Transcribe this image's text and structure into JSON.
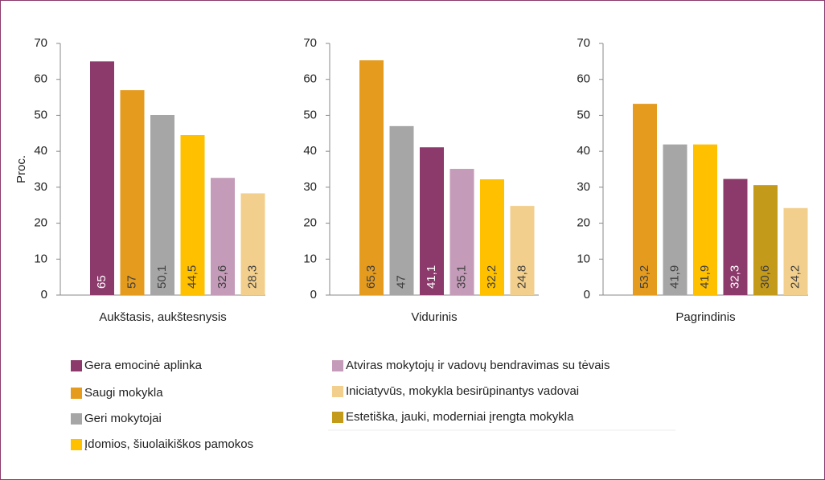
{
  "chart_data": [
    {
      "type": "bar",
      "xlabel": "Aukštasis, aukštesnysis",
      "ylabel": "Proc.",
      "values": [
        65,
        57,
        50.1,
        44.5,
        32.6,
        28.3
      ],
      "value_labels": [
        "65",
        "57",
        "50,1",
        "44,5",
        "32,6",
        "28,3"
      ],
      "colors": [
        "#8b3a6b",
        "#e49b1e",
        "#a6a6a6",
        "#ffc000",
        "#c49bb8",
        "#f2cf8c"
      ],
      "ylim": [
        0,
        70
      ],
      "yticks": [
        0,
        10,
        20,
        30,
        40,
        50,
        60,
        70
      ]
    },
    {
      "type": "bar",
      "xlabel": "Vidurinis",
      "values": [
        65.3,
        47,
        41.1,
        35.1,
        32.2,
        24.8
      ],
      "value_labels": [
        "65,3",
        "47",
        "41,1",
        "35,1",
        "32,2",
        "24,8"
      ],
      "colors": [
        "#e49b1e",
        "#a6a6a6",
        "#8b3a6b",
        "#c49bb8",
        "#ffc000",
        "#f2cf8c"
      ],
      "ylim": [
        0,
        70
      ],
      "yticks": [
        0,
        10,
        20,
        30,
        40,
        50,
        60,
        70
      ]
    },
    {
      "type": "bar",
      "xlabel": "Pagrindinis",
      "values": [
        53.2,
        41.9,
        41.9,
        32.3,
        30.6,
        24.2
      ],
      "value_labels": [
        "53,2",
        "41,9",
        "41,9",
        "32,3",
        "30,6",
        "24,2"
      ],
      "colors": [
        "#e49b1e",
        "#a6a6a6",
        "#ffc000",
        "#8b3a6b",
        "#c49a1a",
        "#f2cf8c"
      ],
      "ylim": [
        0,
        70
      ],
      "yticks": [
        0,
        10,
        20,
        30,
        40,
        50,
        60,
        70
      ]
    }
  ],
  "legend": [
    {
      "name": "Gera emocinė aplinka",
      "color": "#8b3a6b"
    },
    {
      "name": "Saugi mokykla",
      "color": "#e49b1e"
    },
    {
      "name": "Geri mokytojai",
      "color": "#a6a6a6"
    },
    {
      "name": "Įdomios, šiuolaikiškos pamokos",
      "color": "#ffc000"
    },
    {
      "name": "Atviras mokytojų ir vadovų bendravimas su tėvais",
      "color": "#c49bb8"
    },
    {
      "name": "Iniciatyvūs, mokykla besirūpinantys vadovai",
      "color": "#f2cf8c"
    },
    {
      "name": "Estetiška, jauki, moderniai įrengta mokykla",
      "color": "#c49a1a"
    }
  ]
}
